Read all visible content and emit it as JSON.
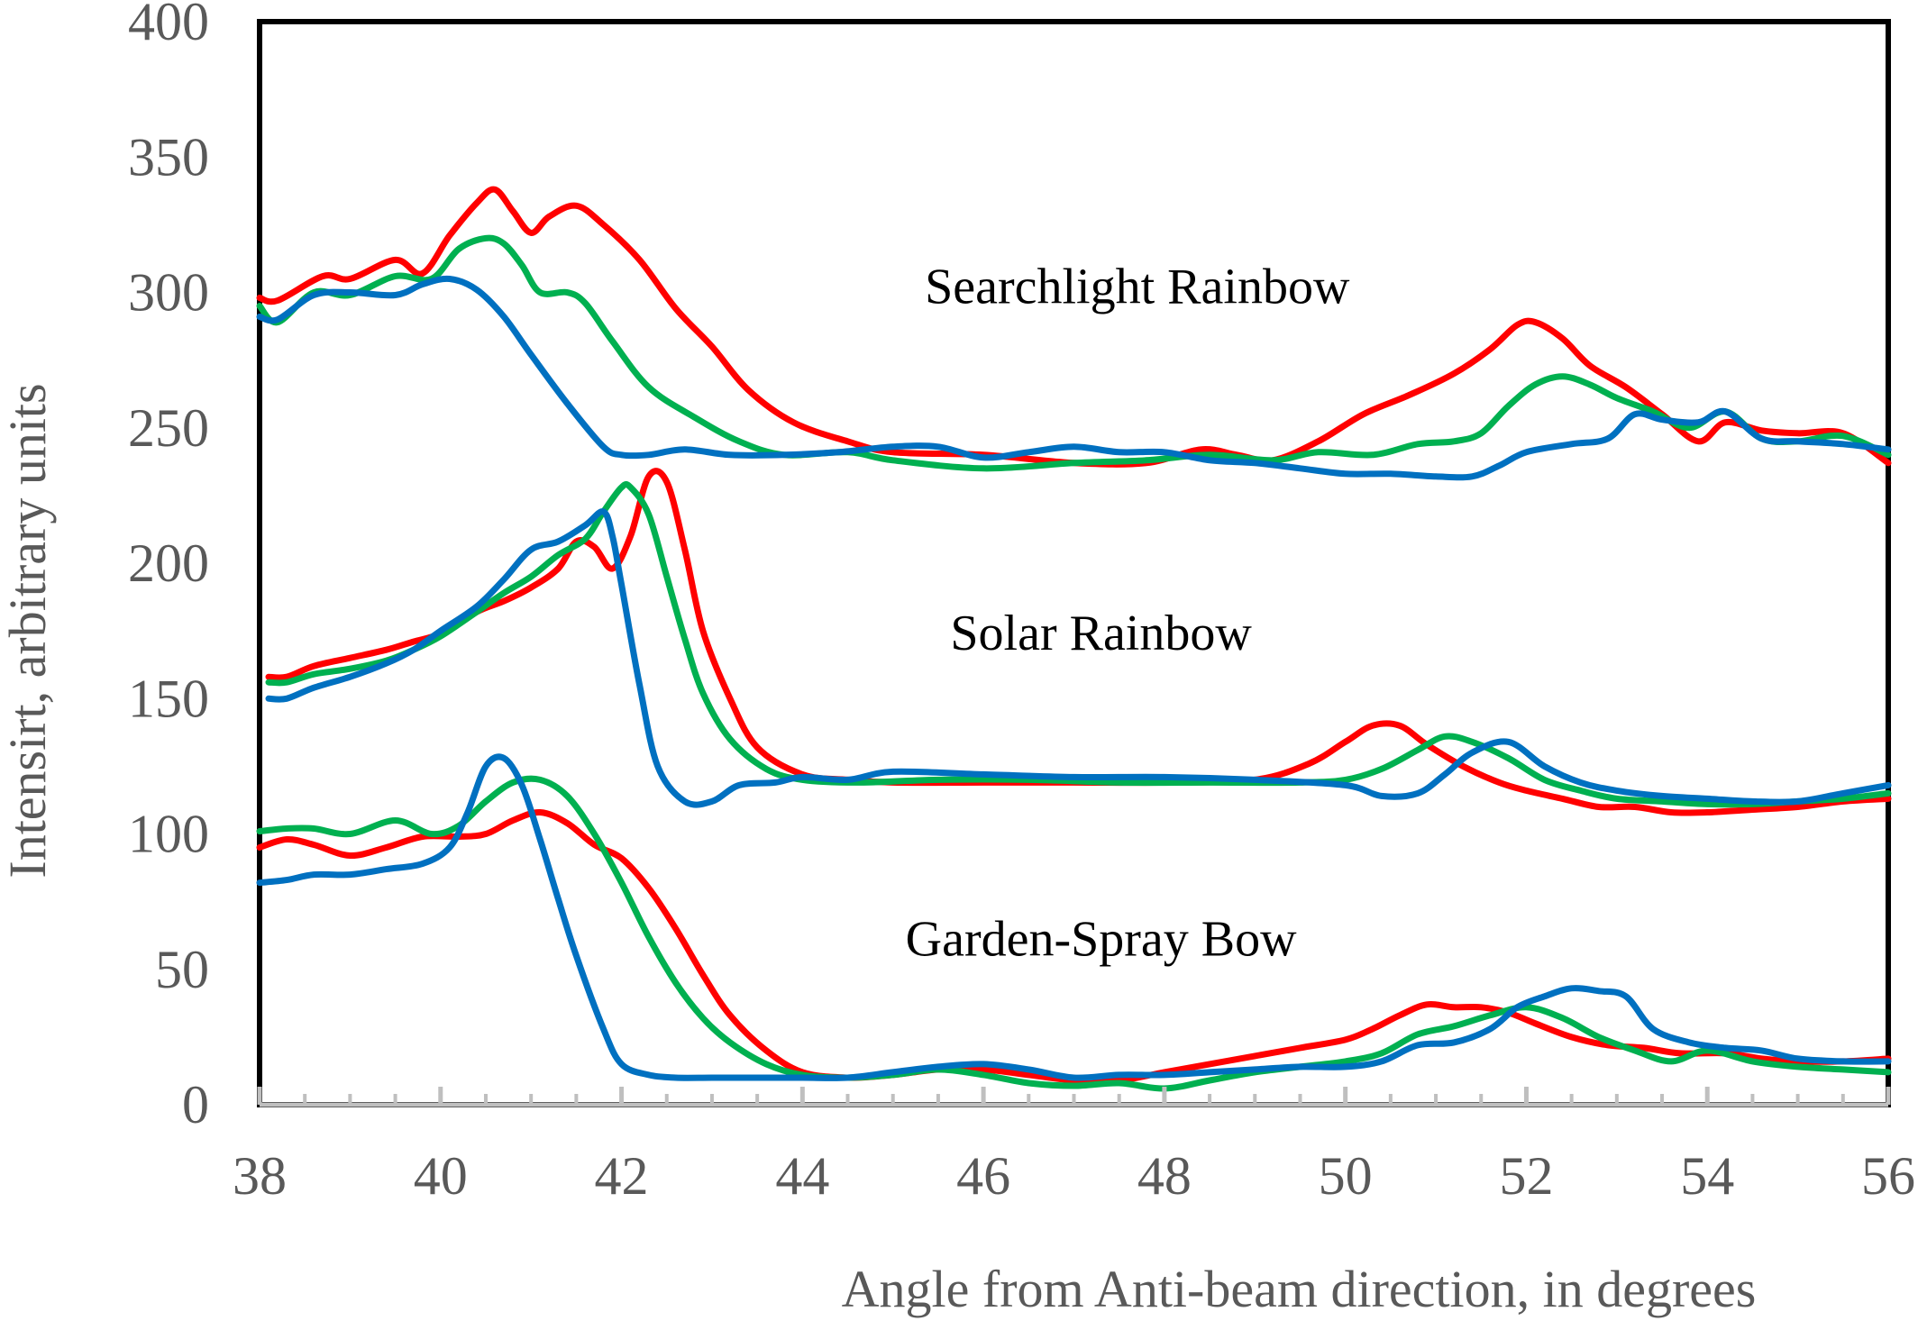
{
  "chart_data": {
    "type": "line",
    "title": "",
    "xlabel": "Angle from Anti-beam direction, in degrees",
    "ylabel": "Intensirt, arbitrary units",
    "xlim": [
      38,
      56
    ],
    "ylim": [
      0,
      400
    ],
    "x_ticks": [
      "38",
      "40",
      "42",
      "44",
      "46",
      "48",
      "50",
      "52",
      "54",
      "56"
    ],
    "y_ticks": [
      "0",
      "50",
      "100",
      "150",
      "200",
      "250",
      "300",
      "350",
      "400"
    ],
    "grid": false,
    "legend": "none",
    "annotations": [
      {
        "text": "Searchlight Rainbow",
        "x": 47.7,
        "y": 296
      },
      {
        "text": "Solar Rainbow",
        "x": 47.3,
        "y": 168
      },
      {
        "text": "Garden-Spray Bow",
        "x": 47.3,
        "y": 55
      }
    ],
    "colors": {
      "red": "#ff0000",
      "green": "#00b050",
      "blue": "#0070c0"
    },
    "series": [
      {
        "group": "Searchlight Rainbow",
        "color": "red",
        "x": [
          38,
          38.2,
          38.7,
          39,
          39.5,
          39.8,
          40.1,
          40.4,
          40.6,
          40.8,
          41,
          41.2,
          41.5,
          41.8,
          42.2,
          42.6,
          43,
          43.4,
          43.9,
          44.5,
          45,
          46,
          47,
          47.8,
          48.4,
          48.8,
          49.2,
          49.7,
          50.2,
          50.7,
          51.2,
          51.6,
          51.9,
          52.1,
          52.4,
          52.7,
          53.1,
          53.5,
          53.9,
          54.2,
          54.6,
          55,
          55.5,
          56
        ],
        "y": [
          298,
          297,
          306,
          305,
          312,
          307,
          321,
          333,
          338,
          330,
          322,
          328,
          332,
          325,
          312,
          294,
          280,
          264,
          252,
          245,
          241,
          240,
          237,
          237,
          242,
          240,
          238,
          245,
          255,
          262,
          270,
          279,
          288,
          289,
          283,
          273,
          265,
          255,
          245,
          252,
          249,
          248,
          248,
          237
        ]
      },
      {
        "group": "Searchlight Rainbow",
        "color": "green",
        "x": [
          38,
          38.2,
          38.6,
          39,
          39.5,
          39.9,
          40.2,
          40.5,
          40.7,
          40.9,
          41.1,
          41.4,
          41.6,
          41.9,
          42.3,
          42.8,
          43.3,
          43.8,
          44.5,
          45,
          46,
          47,
          47.8,
          48.5,
          49.2,
          49.7,
          50.3,
          50.8,
          51.2,
          51.5,
          51.8,
          52.1,
          52.4,
          52.7,
          53,
          53.4,
          53.8,
          54.2,
          54.6,
          55,
          55.5,
          56
        ],
        "y": [
          295,
          289,
          300,
          299,
          306,
          305,
          316,
          320,
          318,
          310,
          300,
          300,
          296,
          282,
          265,
          254,
          245,
          240,
          241,
          238,
          235,
          237,
          238,
          240,
          238,
          241,
          240,
          244,
          245,
          248,
          258,
          266,
          269,
          266,
          261,
          256,
          250,
          256,
          246,
          245,
          247,
          240
        ]
      },
      {
        "group": "Searchlight Rainbow",
        "color": "blue",
        "x": [
          38,
          38.2,
          38.6,
          39,
          39.5,
          39.8,
          40.1,
          40.4,
          40.7,
          41,
          41.4,
          41.8,
          42,
          42.3,
          42.7,
          43.2,
          43.8,
          44.4,
          45,
          45.5,
          46,
          46.5,
          47,
          47.5,
          48,
          48.5,
          49,
          49.5,
          50,
          50.5,
          51,
          51.4,
          51.7,
          52,
          52.5,
          52.9,
          53.2,
          53.5,
          53.9,
          54.2,
          54.6,
          55,
          55.5,
          56
        ],
        "y": [
          291,
          290,
          299,
          300,
          299,
          303,
          305,
          301,
          291,
          277,
          259,
          243,
          240,
          240,
          242,
          240,
          240,
          241,
          243,
          243,
          239,
          241,
          243,
          241,
          241,
          238,
          237,
          235,
          233,
          233,
          232,
          232,
          236,
          241,
          244,
          246,
          255,
          253,
          252,
          256,
          246,
          245,
          244,
          242
        ]
      },
      {
        "group": "Solar Rainbow",
        "color": "red",
        "x": [
          38.1,
          38.3,
          38.6,
          39,
          39.4,
          39.7,
          40,
          40.4,
          40.7,
          41,
          41.3,
          41.5,
          41.7,
          41.9,
          42.1,
          42.3,
          42.5,
          42.7,
          42.9,
          43.2,
          43.5,
          44,
          44.5,
          45,
          46,
          47,
          48,
          49,
          49.6,
          50,
          50.3,
          50.6,
          50.9,
          51.3,
          51.7,
          52,
          52.4,
          52.8,
          53.2,
          53.6,
          54,
          54.5,
          55,
          55.5,
          56
        ],
        "y": [
          158,
          158,
          162,
          165,
          168,
          171,
          174,
          182,
          186,
          191,
          198,
          208,
          206,
          198,
          210,
          232,
          230,
          205,
          175,
          150,
          132,
          122,
          120,
          119,
          119,
          119,
          119,
          120,
          126,
          134,
          140,
          140,
          133,
          125,
          119,
          116,
          113,
          110,
          110,
          108,
          108,
          109,
          110,
          112,
          113
        ]
      },
      {
        "group": "Solar Rainbow",
        "color": "green",
        "x": [
          38.1,
          38.3,
          38.6,
          39,
          39.4,
          39.7,
          40,
          40.4,
          40.7,
          41,
          41.3,
          41.6,
          41.8,
          42,
          42.1,
          42.3,
          42.5,
          42.7,
          42.9,
          43.2,
          43.6,
          44,
          44.6,
          45.5,
          46.5,
          47.5,
          48.5,
          49.5,
          50,
          50.4,
          50.8,
          51.1,
          51.4,
          51.8,
          52.2,
          52.6,
          53,
          53.5,
          54,
          54.5,
          55,
          55.5,
          56
        ],
        "y": [
          156,
          156,
          159,
          161,
          164,
          168,
          173,
          182,
          189,
          195,
          203,
          209,
          219,
          228,
          228,
          218,
          195,
          172,
          152,
          135,
          124,
          120,
          119,
          120,
          120,
          119,
          119,
          119,
          120,
          124,
          131,
          136,
          134,
          128,
          120,
          116,
          113,
          112,
          111,
          111,
          112,
          113,
          115
        ]
      },
      {
        "group": "Solar Rainbow",
        "color": "blue",
        "x": [
          38.1,
          38.3,
          38.6,
          39,
          39.4,
          39.7,
          40,
          40.4,
          40.7,
          41,
          41.3,
          41.6,
          41.8,
          41.9,
          42,
          42.2,
          42.4,
          42.7,
          43,
          43.3,
          43.7,
          44,
          44.5,
          45,
          46,
          47,
          48,
          49,
          50,
          50.4,
          50.8,
          51.1,
          51.4,
          51.8,
          52.2,
          52.6,
          53,
          53.5,
          54,
          54.5,
          55,
          55.5,
          56
        ],
        "y": [
          150,
          150,
          154,
          158,
          163,
          168,
          175,
          184,
          194,
          205,
          208,
          214,
          219,
          210,
          192,
          155,
          125,
          112,
          112,
          118,
          119,
          121,
          120,
          123,
          122,
          121,
          121,
          120,
          118,
          114,
          115,
          122,
          130,
          134,
          125,
          119,
          116,
          114,
          113,
          112,
          112,
          115,
          118
        ]
      },
      {
        "group": "Garden-Spray Bow",
        "color": "red",
        "x": [
          38,
          38.3,
          38.6,
          39,
          39.4,
          39.8,
          40.2,
          40.5,
          40.8,
          41.1,
          41.4,
          41.7,
          42,
          42.3,
          42.6,
          42.9,
          43.2,
          43.6,
          44,
          44.5,
          45,
          45.5,
          46,
          46.5,
          47,
          47.5,
          48,
          48.5,
          49,
          49.5,
          50,
          50.3,
          50.6,
          50.9,
          51.2,
          51.5,
          51.8,
          52.1,
          52.5,
          52.9,
          53.3,
          53.7,
          54.2,
          54.6,
          55,
          55.5,
          56
        ],
        "y": [
          95,
          98,
          96,
          92,
          95,
          99,
          99,
          100,
          105,
          108,
          104,
          96,
          91,
          80,
          65,
          48,
          33,
          20,
          12,
          10,
          11,
          13,
          13,
          11,
          9,
          9,
          12,
          15,
          18,
          21,
          24,
          28,
          33,
          37,
          36,
          36,
          34,
          30,
          25,
          22,
          21,
          19,
          19,
          17,
          16,
          16,
          17
        ]
      },
      {
        "group": "Garden-Spray Bow",
        "color": "green",
        "x": [
          38,
          38.3,
          38.6,
          39,
          39.5,
          39.9,
          40.2,
          40.5,
          40.8,
          41.1,
          41.4,
          41.7,
          42,
          42.3,
          42.6,
          42.9,
          43.2,
          43.6,
          44,
          44.5,
          45,
          45.5,
          46,
          46.5,
          47,
          47.5,
          48,
          48.5,
          49,
          49.5,
          50,
          50.4,
          50.8,
          51.2,
          51.6,
          52,
          52.4,
          52.8,
          53.2,
          53.6,
          54,
          54.5,
          55,
          55.5,
          56
        ],
        "y": [
          101,
          102,
          102,
          100,
          105,
          100,
          103,
          112,
          119,
          120,
          114,
          100,
          82,
          62,
          45,
          32,
          23,
          15,
          11,
          10,
          11,
          13,
          11,
          8,
          7,
          8,
          6,
          9,
          12,
          14,
          16,
          19,
          26,
          29,
          33,
          36,
          32,
          25,
          20,
          16,
          20,
          16,
          14,
          13,
          12
        ]
      },
      {
        "group": "Garden-Spray Bow",
        "color": "blue",
        "x": [
          38,
          38.3,
          38.6,
          39,
          39.4,
          39.8,
          40.1,
          40.3,
          40.5,
          40.7,
          40.9,
          41.1,
          41.3,
          41.5,
          41.8,
          42,
          42.3,
          42.6,
          43,
          43.5,
          44,
          44.5,
          45,
          45.5,
          46,
          46.5,
          47,
          47.5,
          48,
          48.5,
          49,
          49.5,
          50,
          50.4,
          50.8,
          51.2,
          51.6,
          51.9,
          52.2,
          52.5,
          52.8,
          53.1,
          53.4,
          53.8,
          54.2,
          54.6,
          55,
          55.5,
          56
        ],
        "y": [
          82,
          83,
          85,
          85,
          87,
          89,
          95,
          108,
          125,
          128,
          118,
          98,
          76,
          55,
          28,
          15,
          11,
          10,
          10,
          10,
          10,
          10,
          12,
          14,
          15,
          13,
          10,
          11,
          11,
          12,
          13,
          14,
          14,
          16,
          22,
          23,
          28,
          36,
          40,
          43,
          42,
          40,
          28,
          23,
          21,
          20,
          17,
          16,
          16
        ]
      }
    ]
  }
}
